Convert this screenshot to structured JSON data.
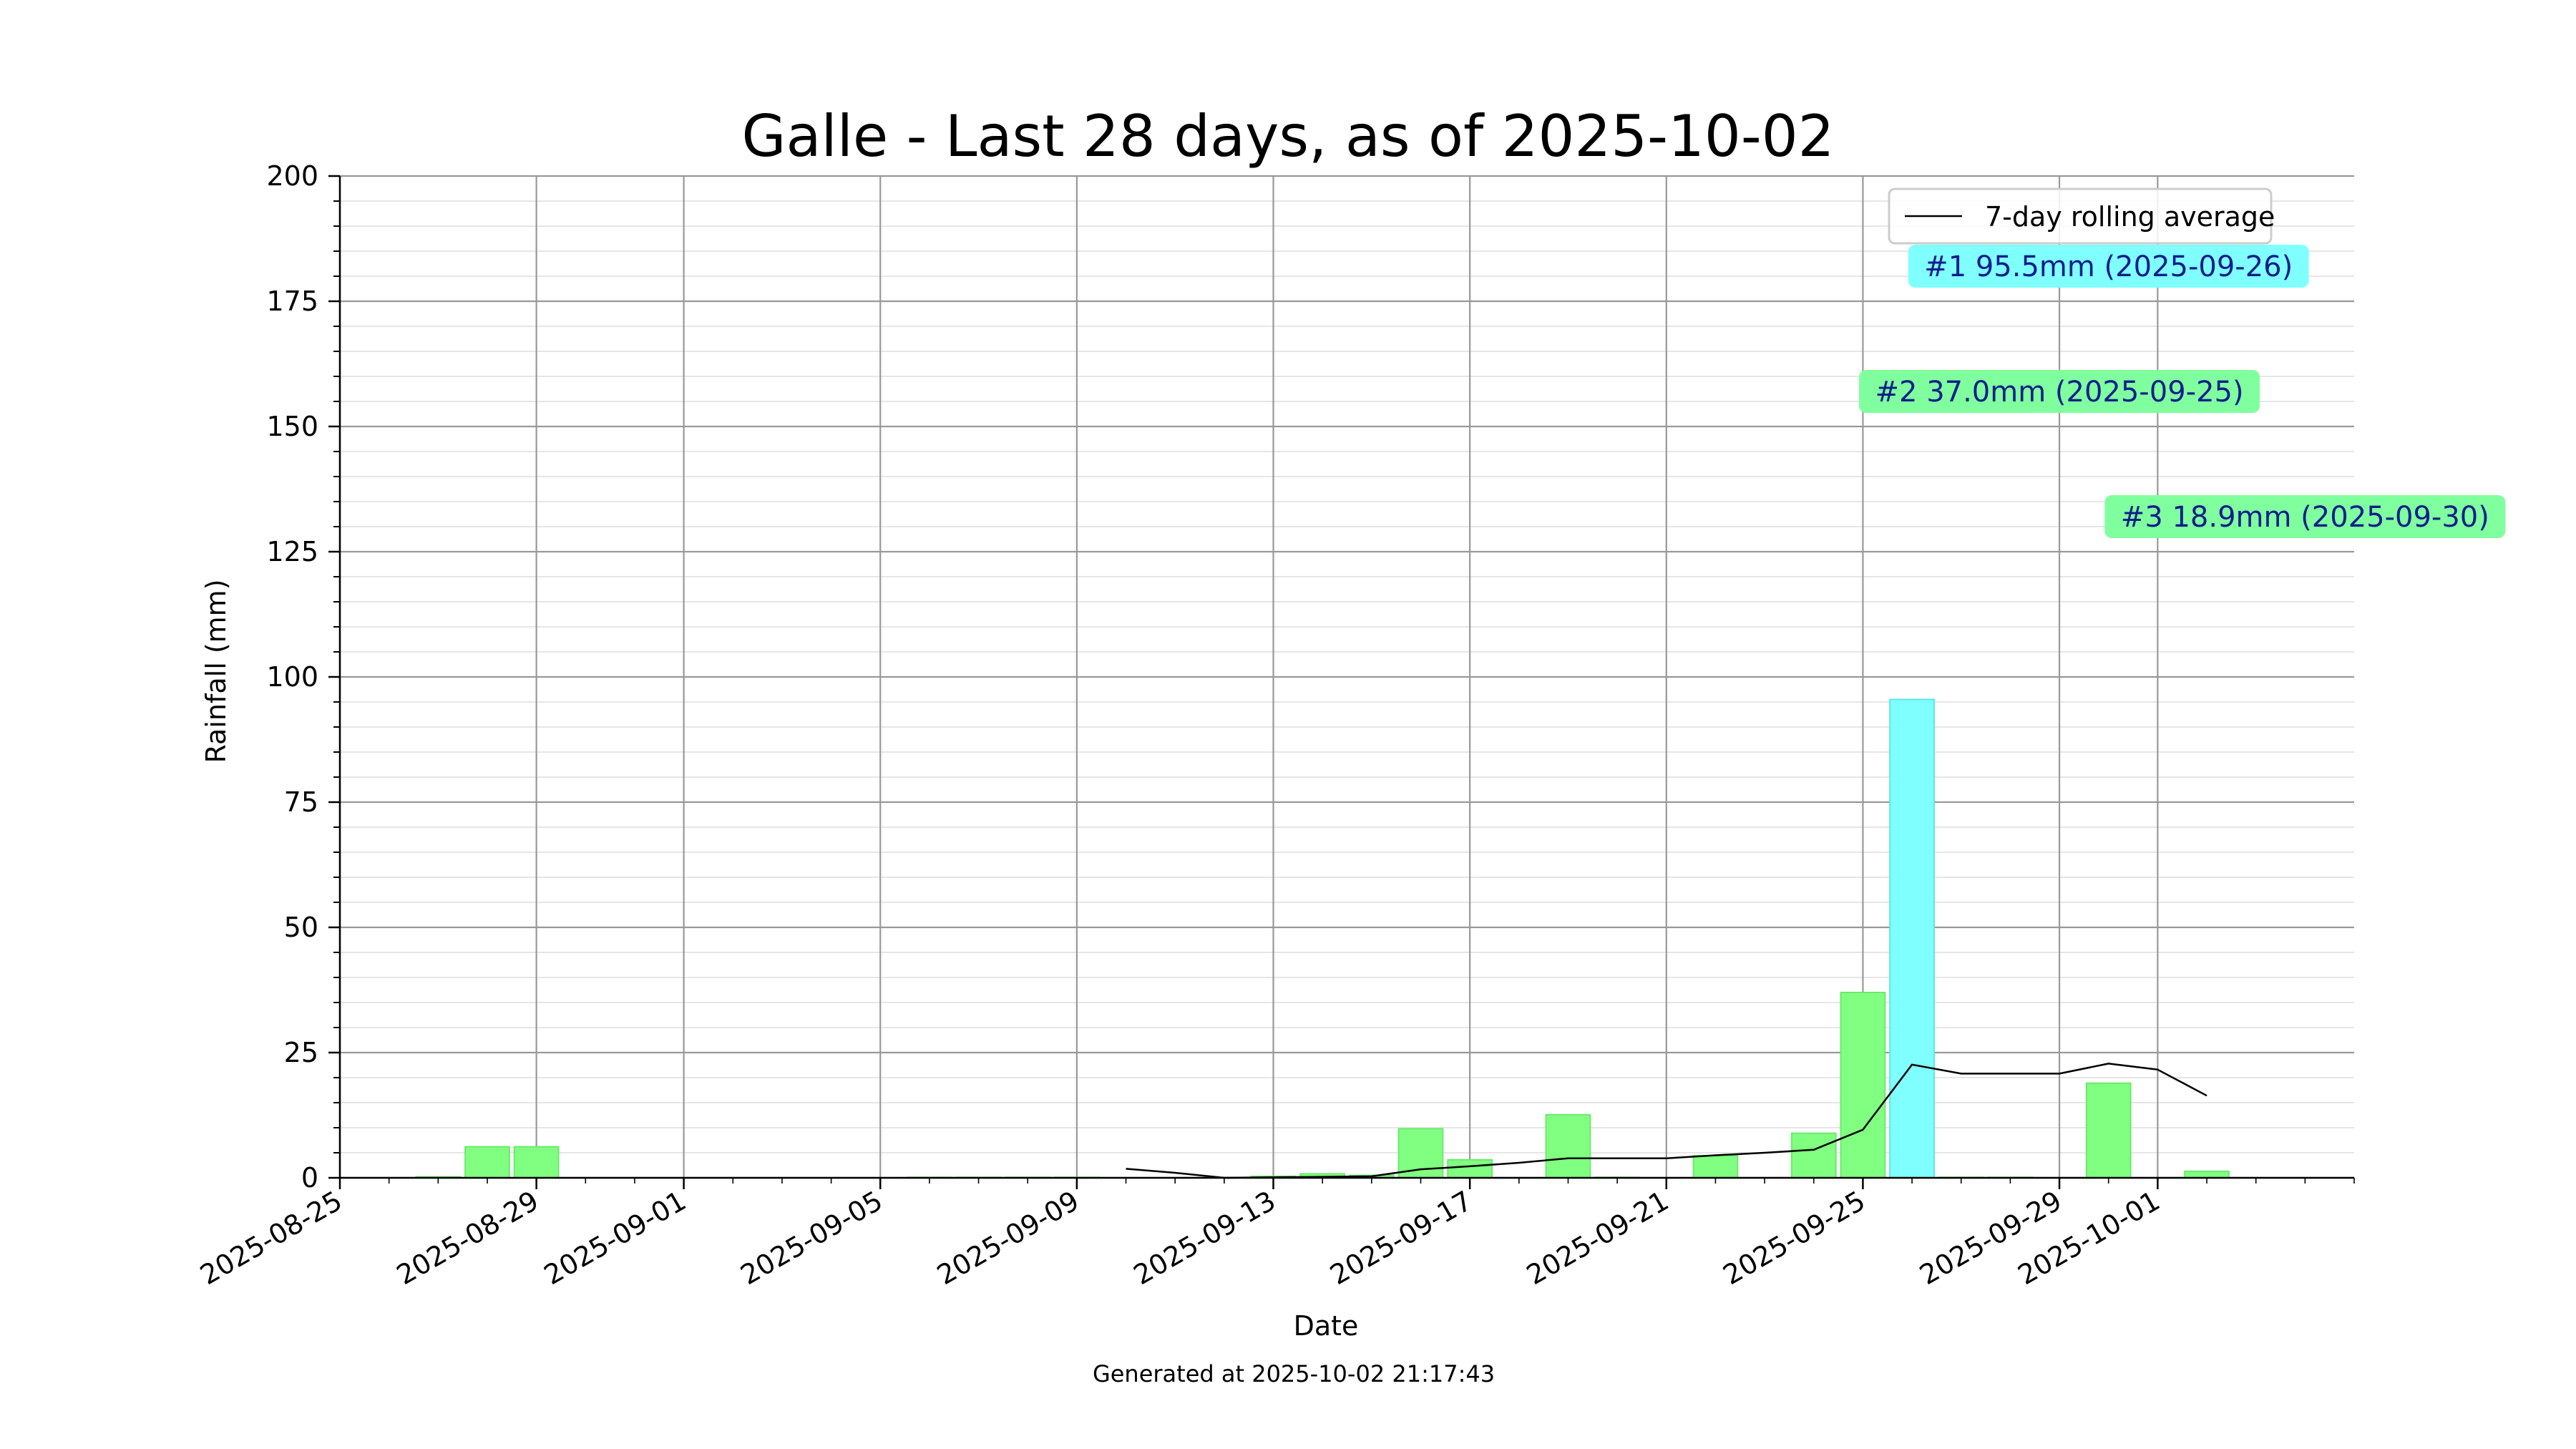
{
  "chart_data": {
    "type": "bar",
    "title": "Galle - Last 28 days, as of 2025-10-02",
    "xlabel": "Date",
    "ylabel": "Rainfall (mm)",
    "ylim": [
      0,
      200
    ],
    "xlim": [
      "2025-08-25",
      "2025-10-05"
    ],
    "grid": true,
    "legend_position": "top-right",
    "footer": "Generated at 2025-10-02 21:17:43",
    "y_ticks": [
      "0",
      "25",
      "50",
      "75",
      "100",
      "125",
      "150",
      "175",
      "200"
    ],
    "x_ticks": [
      {
        "date": "2025-08-25",
        "label": "2025-08-25"
      },
      {
        "date": "2025-08-29",
        "label": "2025-08-29"
      },
      {
        "date": "2025-09-01",
        "label": "2025-09-01"
      },
      {
        "date": "2025-09-05",
        "label": "2025-09-05"
      },
      {
        "date": "2025-09-09",
        "label": "2025-09-09"
      },
      {
        "date": "2025-09-13",
        "label": "2025-09-13"
      },
      {
        "date": "2025-09-17",
        "label": "2025-09-17"
      },
      {
        "date": "2025-09-21",
        "label": "2025-09-21"
      },
      {
        "date": "2025-09-25",
        "label": "2025-09-25"
      },
      {
        "date": "2025-09-29",
        "label": "2025-09-29"
      },
      {
        "date": "2025-10-01",
        "label": "2025-10-01"
      }
    ],
    "bars": [
      {
        "date": "2025-08-27",
        "value": 0.2
      },
      {
        "date": "2025-08-28",
        "value": 6.2
      },
      {
        "date": "2025-08-29",
        "value": 6.2
      },
      {
        "date": "2025-09-06",
        "value": 0.1
      },
      {
        "date": "2025-09-07",
        "value": 0.1
      },
      {
        "date": "2025-09-08",
        "value": 0.1
      },
      {
        "date": "2025-09-09",
        "value": 0.1
      },
      {
        "date": "2025-09-13",
        "value": 0.3
      },
      {
        "date": "2025-09-14",
        "value": 0.8
      },
      {
        "date": "2025-09-15",
        "value": 0.5
      },
      {
        "date": "2025-09-16",
        "value": 9.8
      },
      {
        "date": "2025-09-17",
        "value": 3.6
      },
      {
        "date": "2025-09-19",
        "value": 12.6
      },
      {
        "date": "2025-09-20",
        "value": 0.1
      },
      {
        "date": "2025-09-22",
        "value": 4.4
      },
      {
        "date": "2025-09-24",
        "value": 8.9
      },
      {
        "date": "2025-09-25",
        "value": 37.0
      },
      {
        "date": "2025-09-26",
        "value": 95.5
      },
      {
        "date": "2025-09-27",
        "value": 0.1
      },
      {
        "date": "2025-09-28",
        "value": 0.1
      },
      {
        "date": "2025-09-30",
        "value": 18.9
      },
      {
        "date": "2025-10-02",
        "value": 1.3
      }
    ],
    "highlight_bar": "2025-09-26",
    "series": [
      {
        "name": "7-day rolling average",
        "type": "line",
        "color": "#000000",
        "points": [
          {
            "date": "2025-09-10",
            "value": 1.8
          },
          {
            "date": "2025-09-11",
            "value": 1.0
          },
          {
            "date": "2025-09-12",
            "value": 0.0
          },
          {
            "date": "2025-09-13",
            "value": 0.1
          },
          {
            "date": "2025-09-14",
            "value": 0.2
          },
          {
            "date": "2025-09-15",
            "value": 0.3
          },
          {
            "date": "2025-09-16",
            "value": 1.7
          },
          {
            "date": "2025-09-17",
            "value": 2.3
          },
          {
            "date": "2025-09-18",
            "value": 3.0
          },
          {
            "date": "2025-09-19",
            "value": 3.9
          },
          {
            "date": "2025-09-20",
            "value": 3.9
          },
          {
            "date": "2025-09-21",
            "value": 3.9
          },
          {
            "date": "2025-09-22",
            "value": 4.5
          },
          {
            "date": "2025-09-23",
            "value": 5.0
          },
          {
            "date": "2025-09-24",
            "value": 5.6
          },
          {
            "date": "2025-09-25",
            "value": 9.6
          },
          {
            "date": "2025-09-26",
            "value": 22.6
          },
          {
            "date": "2025-09-27",
            "value": 20.8
          },
          {
            "date": "2025-09-28",
            "value": 20.8
          },
          {
            "date": "2025-09-29",
            "value": 20.8
          },
          {
            "date": "2025-09-30",
            "value": 22.8
          },
          {
            "date": "2025-10-01",
            "value": 21.6
          },
          {
            "date": "2025-10-02",
            "value": 16.4
          }
        ]
      }
    ],
    "annotations": [
      {
        "text": "#1 95.5mm (2025-09-26)",
        "anchor_date": "2025-09-30",
        "anchor_value": 182,
        "color": "#80ffff"
      },
      {
        "text": "#2 37.0mm (2025-09-25)",
        "anchor_date": "2025-09-29",
        "anchor_value": 157,
        "color": "#80ff9f"
      },
      {
        "text": "#3 18.9mm (2025-09-30)",
        "anchor_date": "2025-10-04",
        "anchor_value": 132,
        "color": "#80ff9f"
      }
    ],
    "colors": {
      "bar": "#80ff80",
      "bar_edge": "#6ee86e",
      "highlight": "#80ffff",
      "highlight_edge": "#5ae8e8"
    }
  }
}
